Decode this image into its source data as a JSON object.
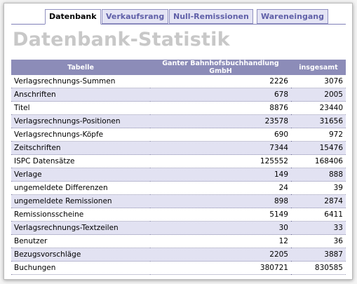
{
  "tabs": [
    "Datenbank",
    "Verkaufsrang",
    "Null-Remissionen",
    "Wareneingang"
  ],
  "active_tab": 0,
  "title": "Datenbank-Statistik",
  "table": {
    "columns": [
      "Tabelle",
      "Ganter Bahnhofsbuchhandlung GmbH",
      "insgesamt"
    ],
    "rows": [
      [
        "Verlagsrechnungs-Summen",
        2226,
        3076
      ],
      [
        "Anschriften",
        678,
        2005
      ],
      [
        "Titel",
        8876,
        23440
      ],
      [
        "Verlagsrechnungs-Positionen",
        23578,
        31656
      ],
      [
        "Verlagsrechnungs-Köpfe",
        690,
        972
      ],
      [
        "Zeitschriften",
        7344,
        15476
      ],
      [
        "ISPC Datensätze",
        125552,
        168406
      ],
      [
        "Verlage",
        149,
        888
      ],
      [
        "ungemeldete Differenzen",
        24,
        39
      ],
      [
        "ungemeldete Remissionen",
        898,
        2874
      ],
      [
        "Remissionsscheine",
        5149,
        6411
      ],
      [
        "Verlagsrechnungs-Textzeilen",
        30,
        33
      ],
      [
        "Benutzer",
        12,
        36
      ],
      [
        "Bezugsvorschläge",
        2205,
        3887
      ],
      [
        "Buchungen",
        380721,
        830585
      ]
    ]
  }
}
